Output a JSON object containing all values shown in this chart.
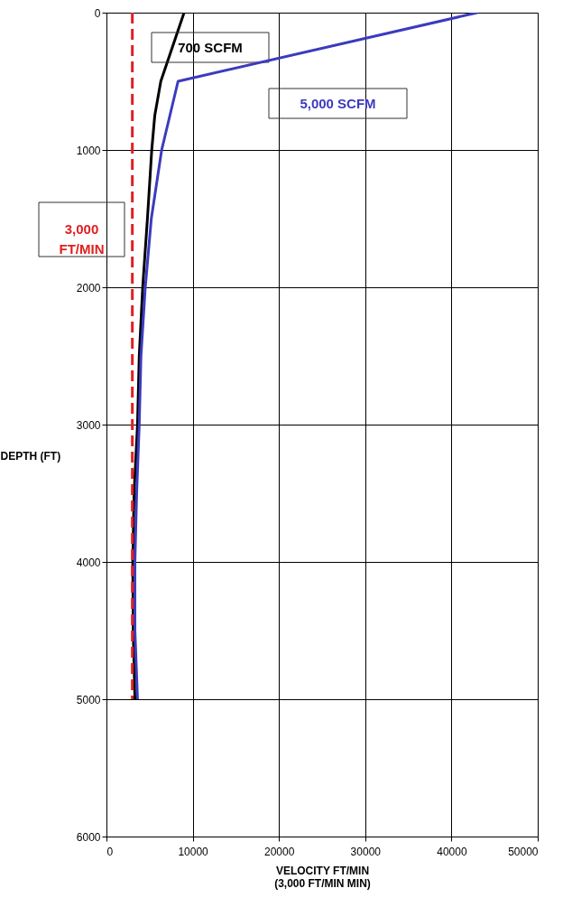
{
  "chart_data": {
    "type": "line",
    "xlabel": "VELOCITY FT/MIN\n(3,000 FT/MIN MIN)",
    "ylabel": "DEPTH (FT)",
    "xlim": [
      0,
      50000
    ],
    "xticks": [
      0,
      10000,
      20000,
      30000,
      40000,
      50000
    ],
    "ylim": [
      6000,
      0
    ],
    "yticks": [
      0,
      1000,
      2000,
      3000,
      4000,
      5000,
      6000
    ],
    "grid": true,
    "marker": "none",
    "series": [
      {
        "name": "700  SCFM",
        "color": "#000000",
        "line_style": "solid",
        "x": [
          9000,
          6300,
          5600,
          5250,
          4750,
          4200,
          3800,
          3600,
          3200,
          3050,
          3100,
          3300
        ],
        "values": [
          0,
          500,
          750,
          1000,
          1500,
          2000,
          2500,
          3000,
          3500,
          4000,
          4500,
          5000
        ]
      },
      {
        "name": "5,000 SCFM",
        "color": "#3b3bbf",
        "line_style": "solid",
        "x": [
          43000,
          8300,
          6400,
          5200,
          4500,
          4000,
          3800,
          3500,
          3300,
          3300,
          3600
        ],
        "values": [
          0,
          500,
          1000,
          1500,
          2000,
          2500,
          3000,
          3500,
          4000,
          4500,
          5000
        ]
      },
      {
        "name": "3,000 FT/MIN",
        "color": "#e02020",
        "line_style": "dashed",
        "x": [
          3000,
          3000
        ],
        "values": [
          0,
          5000
        ]
      }
    ]
  }
}
